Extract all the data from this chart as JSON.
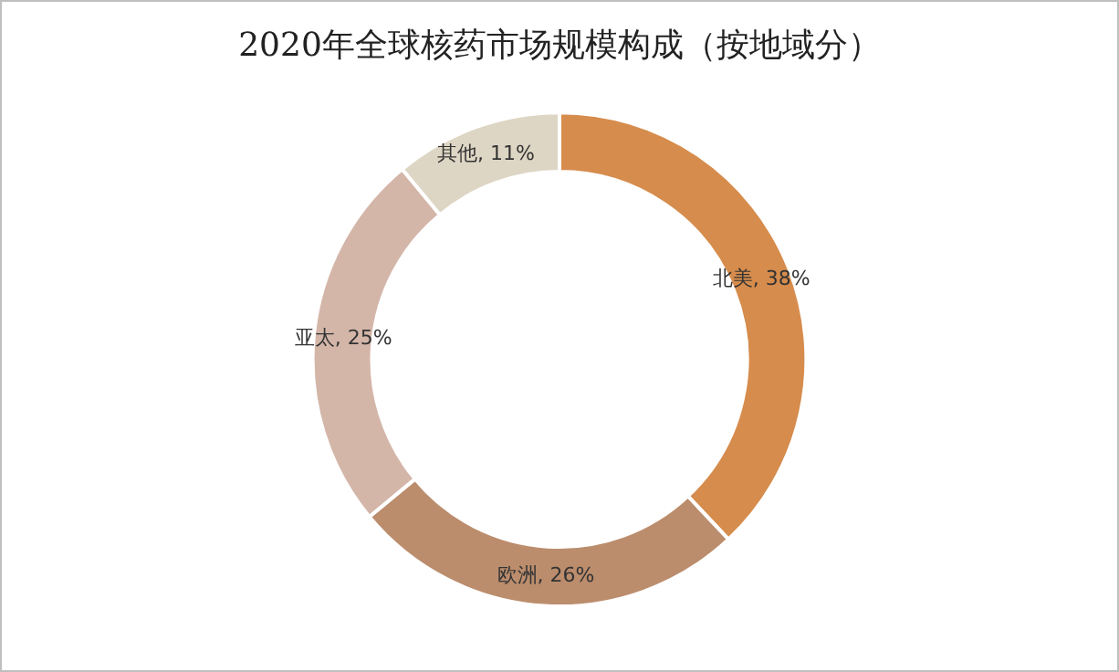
{
  "chart_data": {
    "type": "donut",
    "title": "2020年全球核药市场规模构成（按地域分）",
    "categories": [
      "北美",
      "欧洲",
      "亚太",
      "其他"
    ],
    "values": [
      38,
      26,
      25,
      11
    ],
    "value_labels": [
      "38%",
      "26%",
      "25%",
      "11%"
    ],
    "colors": [
      "#d68c4c",
      "#bb8d6d",
      "#d4b6a9",
      "#ded6c4"
    ],
    "legend": false
  }
}
